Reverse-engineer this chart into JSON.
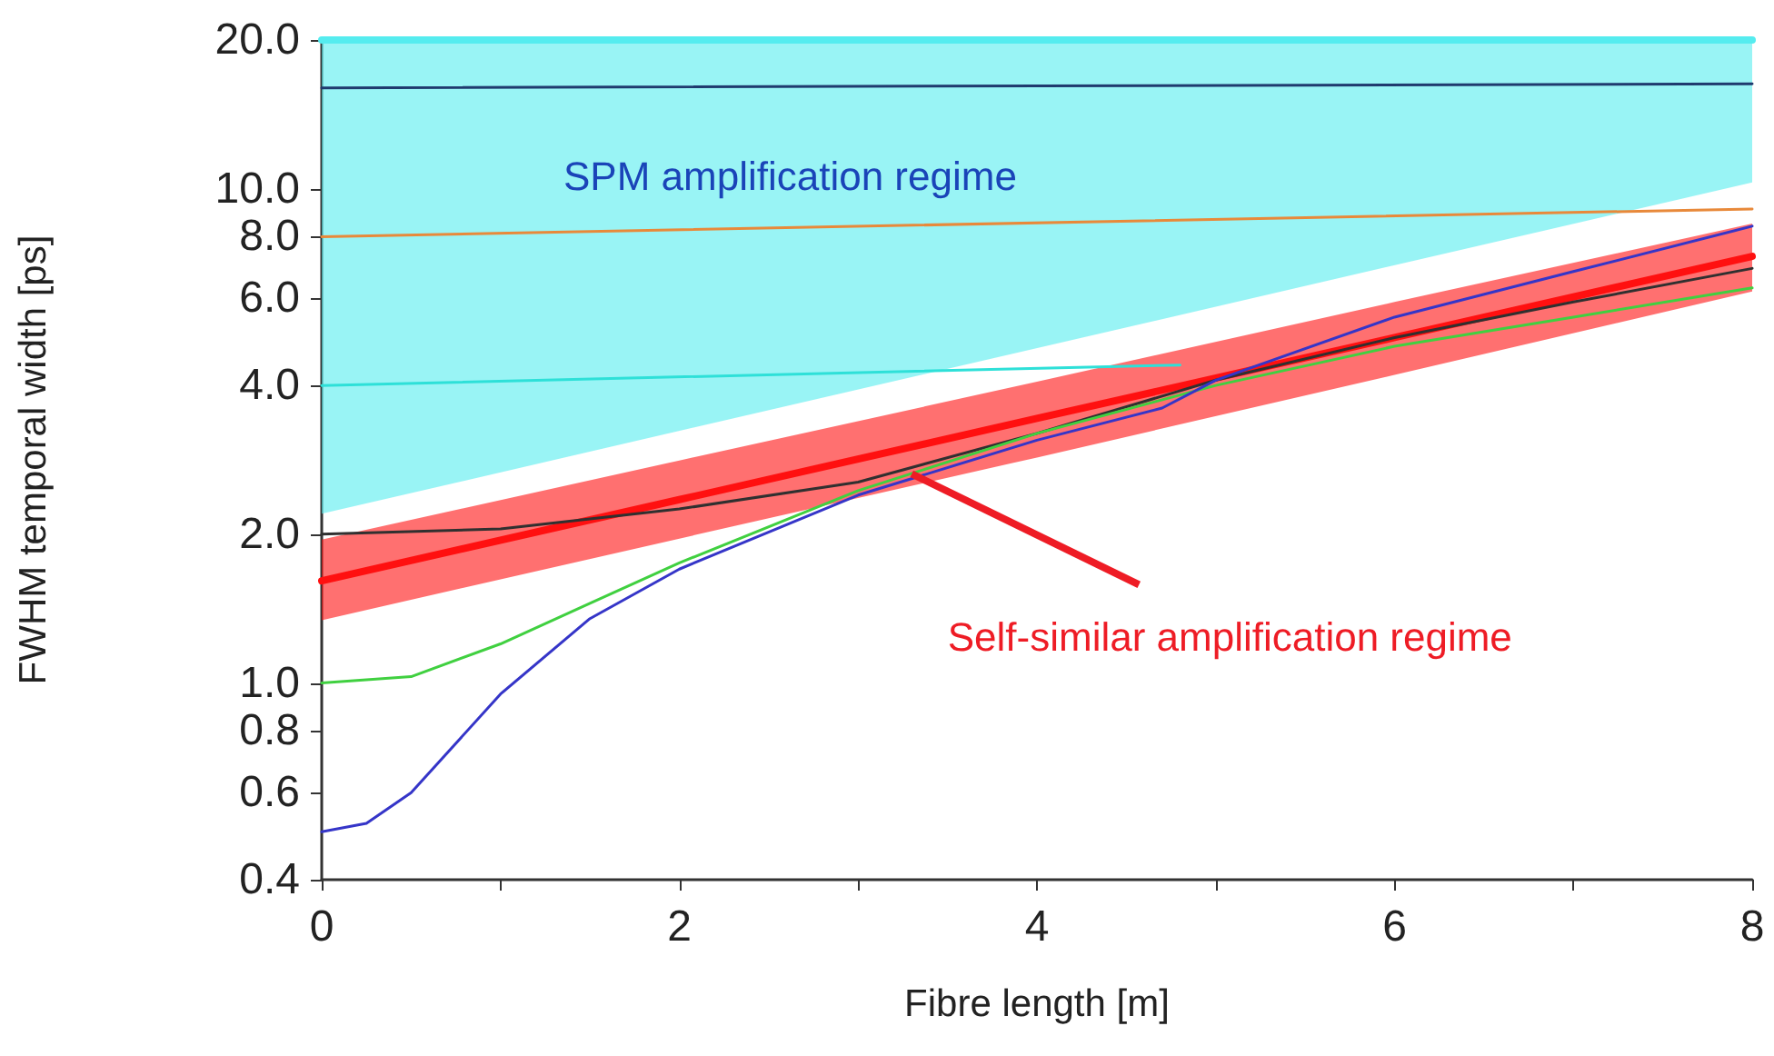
{
  "chart_data": {
    "type": "line",
    "xlabel": "Fibre length [m]",
    "ylabel": "FWHM temporal width [ps]",
    "xlim": [
      0,
      8
    ],
    "xticks": [
      0,
      {
        "value": 1,
        "label": null
      },
      2,
      {
        "value": 3,
        "label": null
      },
      4,
      {
        "value": 5,
        "label": null
      },
      6,
      {
        "value": 7,
        "label": null
      },
      8
    ],
    "ylim": [
      0.4,
      20
    ],
    "yticks": [
      {
        "value": 0.4,
        "label": "0.4"
      },
      {
        "value": 0.6,
        "label": "0.6"
      },
      {
        "value": 0.8,
        "label": "0.8"
      },
      {
        "value": 1,
        "label": "1.0"
      },
      {
        "value": 2,
        "label": "2.0"
      },
      {
        "value": 4,
        "label": "4.0"
      },
      {
        "value": 6,
        "label": "6.0"
      },
      {
        "value": 8,
        "label": "8.0"
      },
      {
        "value": 10,
        "label": "10.0"
      },
      {
        "value": 20,
        "label": "20.0"
      }
    ],
    "log": "y",
    "grid": false,
    "marker": "none",
    "series": [
      {
        "color": "#55ecef",
        "x": [
          0,
          8
        ],
        "values": [
          20,
          20
        ],
        "lower": [
          2.2,
          10.3
        ],
        "upper": [
          20,
          20
        ]
      },
      {
        "color": "#1f3a6e",
        "x": [
          0,
          8
        ],
        "values": [
          16,
          16.3
        ]
      },
      {
        "color": "#e8893a",
        "x": [
          0,
          8
        ],
        "values": [
          8,
          9.1
        ]
      },
      {
        "color": "#2ee0d8",
        "x": [
          0,
          4.8
        ],
        "values": [
          4.0,
          4.4
        ]
      },
      {
        "color": "#ff1010",
        "x": [
          0,
          2,
          4,
          6,
          8
        ],
        "values": [
          1.61,
          2.35,
          3.43,
          5.0,
          7.3
        ],
        "lower": [
          1.34,
          1.96,
          2.86,
          4.2,
          6.2
        ],
        "upper": [
          1.95,
          2.82,
          4.07,
          5.9,
          8.5
        ]
      },
      {
        "color": "#303030",
        "x": [
          0,
          1,
          2,
          3,
          4,
          5,
          6,
          7,
          8
        ],
        "values": [
          2.0,
          2.05,
          2.25,
          2.55,
          3.2,
          4.1,
          5.0,
          5.9,
          6.9
        ]
      },
      {
        "color": "#40d040",
        "x": [
          0,
          0.5,
          1,
          1.5,
          2,
          3,
          4,
          5,
          6,
          7,
          8
        ],
        "values": [
          1.0,
          1.03,
          1.2,
          1.45,
          1.75,
          2.45,
          3.2,
          4.0,
          4.8,
          5.5,
          6.3
        ]
      },
      {
        "color": "#3535c8",
        "x": [
          0,
          0.25,
          0.5,
          1,
          1.5,
          2,
          3,
          4,
          4.7,
          5,
          6,
          7,
          8
        ],
        "values": [
          0.5,
          0.52,
          0.6,
          0.95,
          1.35,
          1.7,
          2.4,
          3.1,
          3.6,
          4.1,
          5.5,
          6.8,
          8.4
        ]
      }
    ],
    "annotations": [
      "SPM amplification regime",
      {
        "text": "Self-similar amplification regime",
        "x": 3.3,
        "y": 2.65
      }
    ]
  }
}
